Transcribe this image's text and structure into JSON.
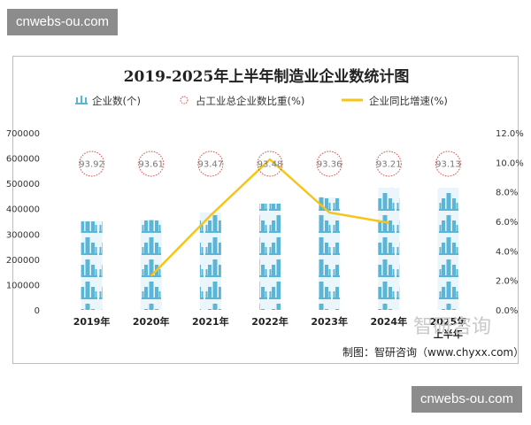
{
  "watermarks": {
    "top": "cnwebs-ou.com",
    "bottom": "cnwebs-ou.com"
  },
  "overlay_logo_text": "智研咨询",
  "chart_data": {
    "type": "bar",
    "title": "2019-2025年上半年制造业企业数统计图",
    "source": "制图：智研咨询（www.chyxx.com）",
    "categories": [
      "2019年",
      "2020年",
      "2021年",
      "2022年",
      "2023年",
      "2024年",
      "2025年上半年"
    ],
    "category_lines": [
      [
        "2019年"
      ],
      [
        "2020年"
      ],
      [
        "2021年"
      ],
      [
        "2022年"
      ],
      [
        "2023年"
      ],
      [
        "2024年"
      ],
      [
        "2025年",
        "上半年"
      ]
    ],
    "legend": {
      "position": "top",
      "entries": [
        "企业数(个)",
        "占工业总企业数比重(%)",
        "企业同比增速(%)"
      ]
    },
    "y_left": {
      "min": 0,
      "max": 700000,
      "ticks": [
        "0",
        "100000",
        "200000",
        "300000",
        "400000",
        "500000",
        "600000",
        "700000"
      ]
    },
    "y_right": {
      "min": 0,
      "max": 12,
      "ticks": [
        "0.0%",
        "2.0%",
        "4.0%",
        "6.0%",
        "8.0%",
        "10.0%",
        "12.0%"
      ]
    },
    "series": [
      {
        "name": "企业数(个)",
        "chart": "pictorial-bar",
        "axis": "left",
        "color": "#5bb5d6",
        "values": [
          350000,
          355000,
          385000,
          420000,
          445000,
          480000,
          480000
        ]
      },
      {
        "name": "占工业总企业数比重(%)",
        "chart": "marker",
        "color": "#d9534f",
        "values": [
          93.92,
          93.61,
          93.47,
          93.48,
          93.36,
          93.21,
          93.13
        ],
        "labels": [
          "93.92",
          "93.61",
          "93.47",
          "93.48",
          "93.36",
          "93.21",
          "93.13"
        ]
      },
      {
        "name": "企业同比增速(%)",
        "chart": "line",
        "axis": "right",
        "color": "#f5c518",
        "values": [
          null,
          2.3,
          6.4,
          10.2,
          6.6,
          5.9,
          null
        ]
      }
    ],
    "grid": false
  }
}
